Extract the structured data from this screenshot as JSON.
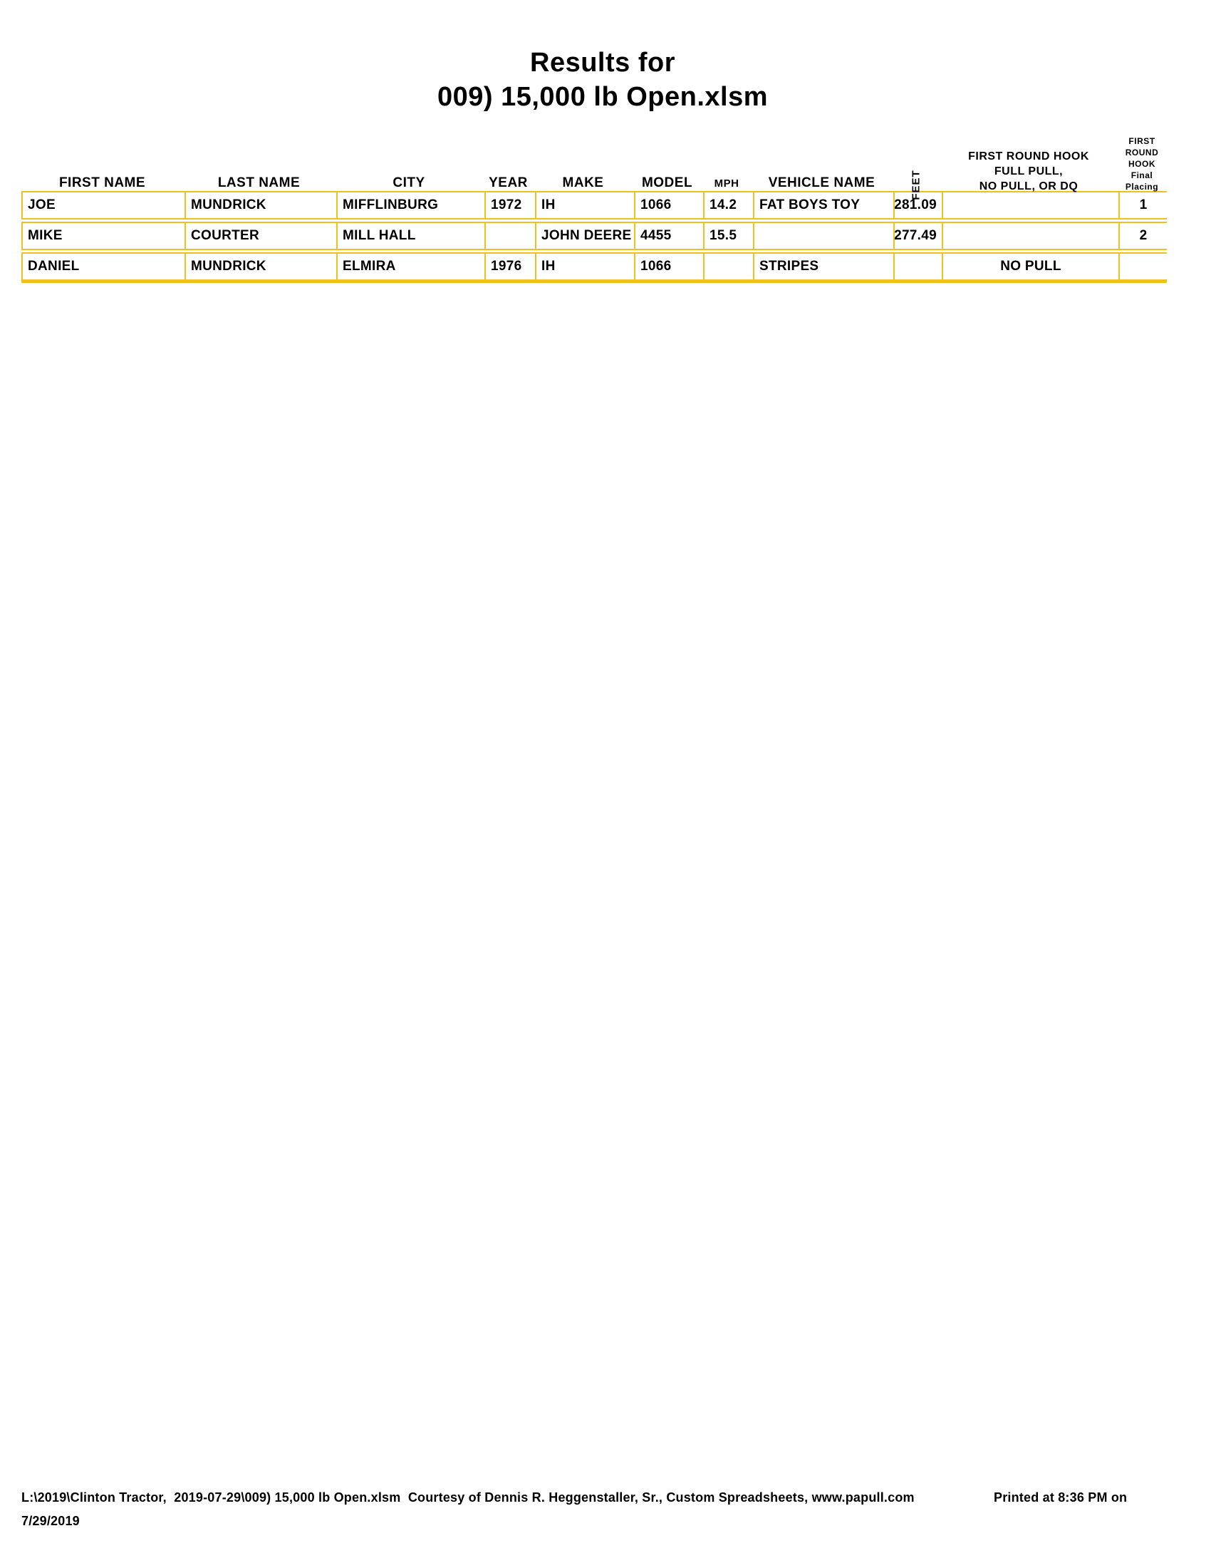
{
  "title": {
    "line1": "Results for",
    "line2": "009) 15,000 lb Open.xlsm"
  },
  "colors": {
    "table_border": "#F0C020",
    "text": "#000000",
    "background": "#FFFFFF"
  },
  "table": {
    "headers": {
      "first_name": "FIRST NAME",
      "last_name": "LAST NAME",
      "city": "CITY",
      "year": "YEAR",
      "make": "MAKE",
      "model": "MODEL",
      "mph": "MPH",
      "vehicle_name": "VEHICLE NAME",
      "feet": "FEET",
      "full_pull": [
        "FIRST ROUND HOOK",
        "FULL PULL,",
        "NO PULL, OR DQ"
      ],
      "placing": [
        "FIRST ROUND",
        "HOOK",
        "Final Placing"
      ]
    },
    "rows": [
      {
        "first_name": "JOE",
        "last_name": "MUNDRICK",
        "city": "MIFFLINBURG",
        "year": "1972",
        "make": "IH",
        "model": "1066",
        "mph": "14.2",
        "vehicle_name": "FAT BOYS TOY",
        "feet": "281.09",
        "full_pull": "",
        "placing": "1"
      },
      {
        "first_name": "MIKE",
        "last_name": "COURTER",
        "city": "MILL HALL",
        "year": "",
        "make": "JOHN DEERE",
        "model": "4455",
        "mph": "15.5",
        "vehicle_name": "",
        "feet": "277.49",
        "full_pull": "",
        "placing": "2"
      },
      {
        "first_name": "DANIEL",
        "last_name": "MUNDRICK",
        "city": "ELMIRA",
        "year": "1976",
        "make": "IH",
        "model": "1066",
        "mph": "",
        "vehicle_name": "STRIPES",
        "feet": "",
        "full_pull": "NO PULL",
        "placing": ""
      }
    ]
  },
  "footer": {
    "file_info": "L:\\2019\\Clinton Tractor,  2019-07-29\\009) 15,000 lb Open.xlsm  Courtesy of Dennis R. Heggenstaller, Sr., Custom Spreadsheets, www.papull.com",
    "printed_at": "Printed at 8:36 PM on",
    "printed_date": "7/29/2019"
  }
}
